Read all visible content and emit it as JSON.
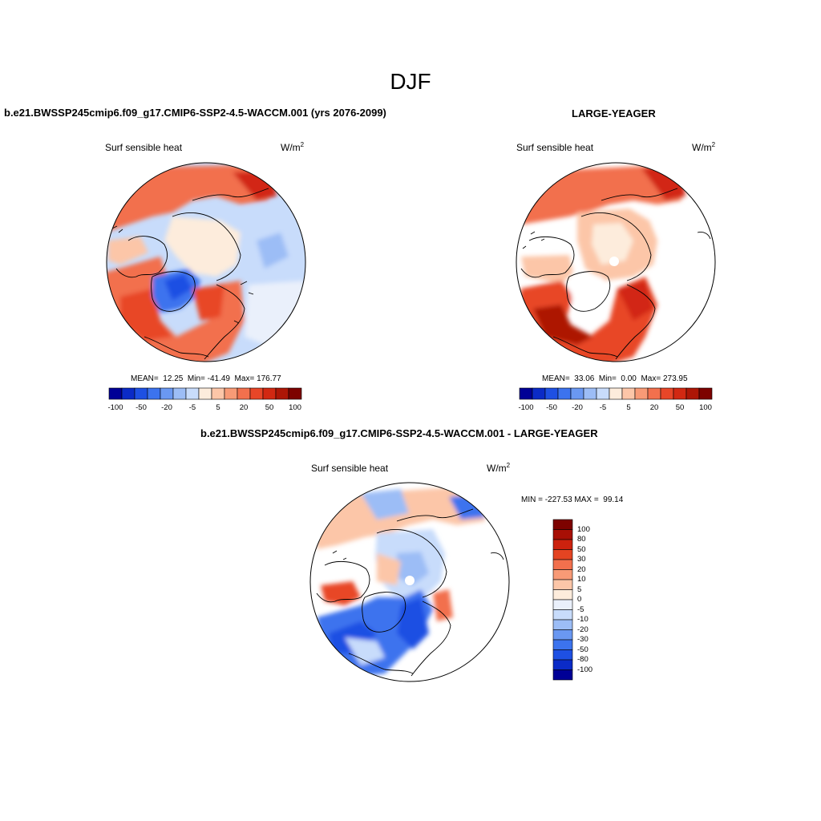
{
  "figure": {
    "season": "DJF",
    "units_base": "W/m",
    "units_exp": "2",
    "colorbar_colors": [
      "#000096",
      "#0b2bc7",
      "#1e50e3",
      "#3c73ee",
      "#6a98f2",
      "#9cbdf6",
      "#c8dcfb",
      "#fdecdc",
      "#fcc6a8",
      "#f89a76",
      "#f2704d",
      "#e84628",
      "#d22812",
      "#ad1606",
      "#7d0200"
    ]
  },
  "panels": [
    {
      "case": "b.e21.BWSSP245cmip6.f09_g17.CMIP6-SSP2-4.5-WACCM.001 (yrs 2076-2099)",
      "variable": "Surf sensible heat",
      "mean_label": "MEAN=",
      "mean": "12.25",
      "min_label": "Min=",
      "min": "-41.49",
      "max_label": "Max=",
      "max": "176.77",
      "colorbar_labels": [
        "-100",
        "-50",
        "-20",
        "-5",
        "5",
        "20",
        "50",
        "100"
      ]
    },
    {
      "case": "LARGE-YEAGER",
      "variable": "Surf sensible heat",
      "mean_label": "MEAN=",
      "mean": "33.06",
      "min_label": "Min=",
      "min": "0.00",
      "max_label": "Max=",
      "max": "273.95",
      "colorbar_labels": [
        "-100",
        "-50",
        "-20",
        "-5",
        "5",
        "20",
        "50",
        "100"
      ]
    }
  ],
  "diff_panel": {
    "title": "b.e21.BWSSP245cmip6.f09_g17.CMIP6-SSP2-4.5-WACCM.001 - LARGE-YEAGER",
    "variable": "Surf sensible heat",
    "minmax": "MIN = -227.53 MAX =  99.14",
    "colorbar_labels": [
      "100",
      "80",
      "50",
      "30",
      "20",
      "10",
      "5",
      "0",
      "-5",
      "-10",
      "-20",
      "-30",
      "-50",
      "-80",
      "-100"
    ],
    "colorbar_colors": [
      "#7d0200",
      "#a80f05",
      "#cc220e",
      "#e44422",
      "#f2704d",
      "#f89a76",
      "#fcc6a8",
      "#fdecdc",
      "#eaf0fb",
      "#c8dcfb",
      "#9cbdf6",
      "#6a98f2",
      "#3c73ee",
      "#1e50e3",
      "#0b2bc7",
      "#000096"
    ]
  }
}
